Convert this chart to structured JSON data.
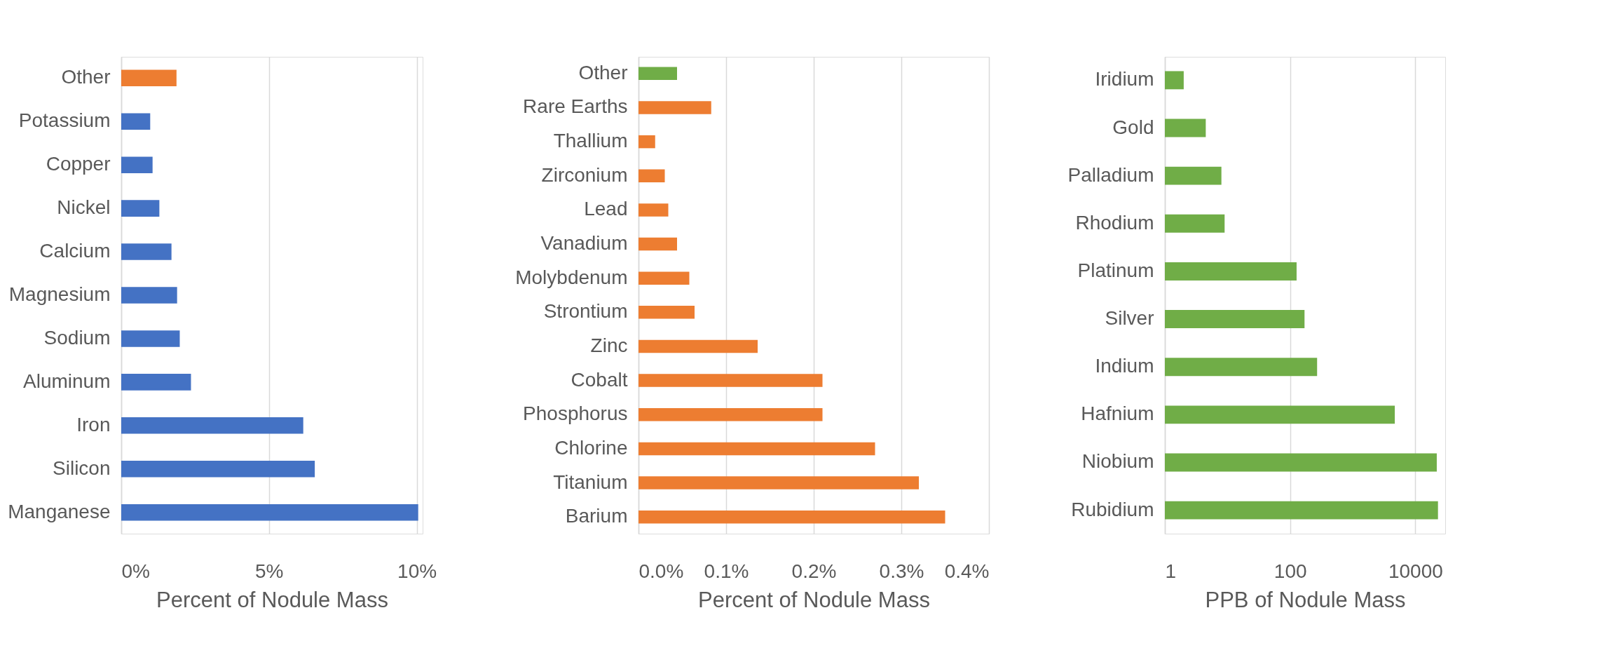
{
  "chart_data": [
    {
      "type": "bar",
      "orientation": "horizontal",
      "xlabel": "Percent of Nodule Mass",
      "categories": [
        "Other",
        "Potassium",
        "Copper",
        "Nickel",
        "Calcium",
        "Magnesium",
        "Sodium",
        "Aluminum",
        "Iron",
        "Silicon",
        "Manganese"
      ],
      "values": [
        1.87,
        0.98,
        1.06,
        1.29,
        1.7,
        1.89,
        1.98,
        2.36,
        6.16,
        6.55,
        10.05
      ],
      "colors": [
        "#ed7d31",
        "#4472c4",
        "#4472c4",
        "#4472c4",
        "#4472c4",
        "#4472c4",
        "#4472c4",
        "#4472c4",
        "#4472c4",
        "#4472c4",
        "#4472c4"
      ],
      "xlim": [
        0,
        10.2
      ],
      "xticks": [
        {
          "value": 0,
          "label": "0%"
        },
        {
          "value": 5,
          "label": "5%"
        },
        {
          "value": 10,
          "label": "10%"
        }
      ],
      "grid": "x"
    },
    {
      "type": "bar",
      "orientation": "horizontal",
      "xlabel": "Percent of Nodule Mass",
      "categories": [
        "Other",
        "Rare Earths",
        "Thallium",
        "Zirconium",
        "Lead",
        "Vanadium",
        "Molybdenum",
        "Strontium",
        "Zinc",
        "Cobalt",
        "Phosphorus",
        "Chlorine",
        "Titanium",
        "Barium"
      ],
      "values": [
        0.044,
        0.083,
        0.019,
        0.03,
        0.034,
        0.044,
        0.058,
        0.064,
        0.136,
        0.21,
        0.21,
        0.27,
        0.32,
        0.35
      ],
      "colors": [
        "#70ad47",
        "#ed7d31",
        "#ed7d31",
        "#ed7d31",
        "#ed7d31",
        "#ed7d31",
        "#ed7d31",
        "#ed7d31",
        "#ed7d31",
        "#ed7d31",
        "#ed7d31",
        "#ed7d31",
        "#ed7d31",
        "#ed7d31"
      ],
      "xlim": [
        0,
        0.4
      ],
      "xticks": [
        {
          "value": 0,
          "label": "0.0%"
        },
        {
          "value": 0.1,
          "label": "0.1%"
        },
        {
          "value": 0.2,
          "label": "0.2%"
        },
        {
          "value": 0.3,
          "label": "0.3%"
        },
        {
          "value": 0.4,
          "label": "0.4%"
        }
      ],
      "grid": "x"
    },
    {
      "type": "bar",
      "orientation": "horizontal",
      "xlabel": "PPB of Nodule Mass",
      "categories": [
        "Iridium",
        "Gold",
        "Palladium",
        "Rhodium",
        "Platinum",
        "Silver",
        "Indium",
        "Hafnium",
        "Niobium",
        "Rubidium"
      ],
      "values": [
        2.0,
        4.5,
        8.0,
        9.0,
        127,
        170,
        270,
        4700,
        22000,
        23000
      ],
      "color": "#70ad47",
      "log": "x",
      "xlim": [
        1,
        30000
      ],
      "xticks": [
        1,
        100,
        10000
      ],
      "grid": "x"
    }
  ]
}
